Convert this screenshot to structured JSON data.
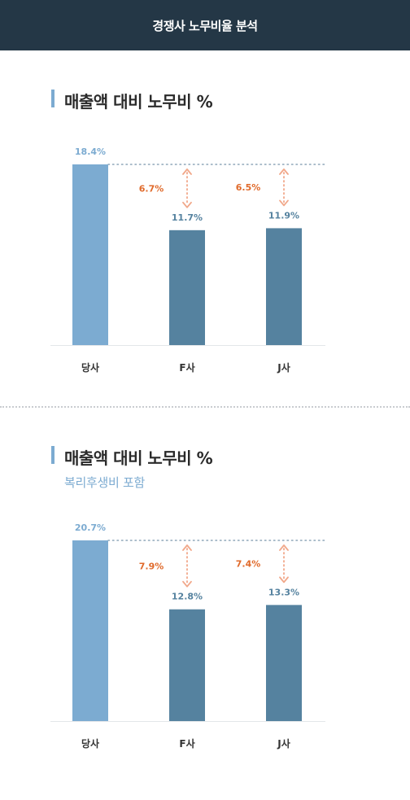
{
  "header": {
    "title": "경쟁사 노무비율 분석"
  },
  "colors": {
    "header_bg": "#243746",
    "own_bar": "#7cabd1",
    "competitor_bar": "#55829f",
    "own_value_label": "#7cabd1",
    "competitor_value_label": "#55829f",
    "gap_label": "#e06a2b",
    "gap_arrow": "#f1a88a",
    "reference_line": "#8da6b8"
  },
  "sections": [
    {
      "title": "매출액 대비 노무비 %",
      "subtitle": ""
    },
    {
      "title": "매출액 대비 노무비 %",
      "subtitle": "복리후생비 포함"
    }
  ],
  "chart_data": [
    {
      "type": "bar",
      "title": "매출액 대비 노무비 %",
      "categories": [
        "당사",
        "F사",
        "J사"
      ],
      "values": [
        18.4,
        11.7,
        11.9
      ],
      "value_labels": [
        "18.4%",
        "11.7%",
        "11.9%"
      ],
      "gaps": [
        {
          "category": "F사",
          "value": 6.7,
          "label": "6.7%"
        },
        {
          "category": "J사",
          "value": 6.5,
          "label": "6.5%"
        }
      ],
      "ylim": [
        0,
        18.4
      ],
      "grid": false,
      "legend": "none"
    },
    {
      "type": "bar",
      "title": "매출액 대비 노무비 %",
      "subtitle": "복리후생비 포함",
      "categories": [
        "당사",
        "F사",
        "J사"
      ],
      "values": [
        20.7,
        12.8,
        13.3
      ],
      "value_labels": [
        "20.7%",
        "12.8%",
        "13.3%"
      ],
      "gaps": [
        {
          "category": "F사",
          "value": 7.9,
          "label": "7.9%"
        },
        {
          "category": "J사",
          "value": 7.4,
          "label": "7.4%"
        }
      ],
      "ylim": [
        0,
        20.7
      ],
      "grid": false,
      "legend": "none"
    }
  ]
}
